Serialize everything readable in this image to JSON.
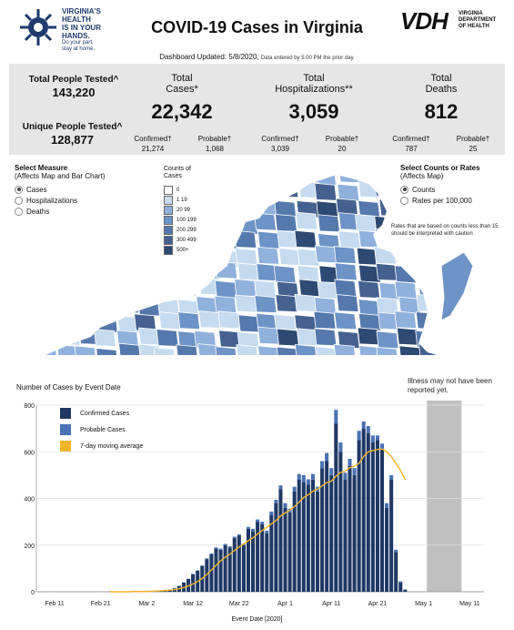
{
  "header": {
    "logo_lines": [
      "VIRGINIA'S",
      "HEALTH",
      "IS IN YOUR",
      "HANDS."
    ],
    "logo_sub": [
      "Do your part,",
      "stay at home."
    ],
    "title": "COVID-19 Cases in Virginia",
    "updated": "Dashboard Updated: 5/8/2020,",
    "updated_small": "Data entered by 5:00 PM the prior day.",
    "vdh_mark": "VDH",
    "vdh_sub": [
      "VIRGINIA",
      "DEPARTMENT",
      "OF HEALTH"
    ]
  },
  "stats": {
    "total_tested_label": "Total People Tested^",
    "total_tested": "143,220",
    "unique_tested_label": "Unique People Tested^",
    "unique_tested": "128,877",
    "cases": {
      "label1": "Total",
      "label2": "Cases*",
      "value": "22,342",
      "confirmed_label": "Confirmed†",
      "confirmed": "21,274",
      "probable_label": "Probable†",
      "probable": "1,068"
    },
    "hosp": {
      "label1": "Total",
      "label2": "Hospitalizations**",
      "value": "3,059",
      "confirmed_label": "Confirmed†",
      "confirmed": "3,039",
      "probable_label": "Probable†",
      "probable": "20"
    },
    "deaths": {
      "label1": "Total",
      "label2": "Deaths",
      "value": "812",
      "confirmed_label": "Confirmed†",
      "confirmed": "787",
      "probable_label": "Probable†",
      "probable": "25"
    }
  },
  "measure": {
    "title": "Select Measure",
    "subtitle": "(Affects Map and Bar Chart)",
    "options": [
      "Cases",
      "Hospitalizations",
      "Deaths"
    ],
    "selected": "Cases"
  },
  "legend": {
    "title1": "Counts of",
    "title2": "Cases",
    "bins": [
      {
        "label": "0",
        "color": "#ffffff"
      },
      {
        "label": "1 19",
        "color": "#c6dbef"
      },
      {
        "label": "20 99",
        "color": "#8fb1dc"
      },
      {
        "label": "100 199",
        "color": "#6d93c7"
      },
      {
        "label": "200 299",
        "color": "#5578ad"
      },
      {
        "label": "300 499",
        "color": "#44618f"
      },
      {
        "label": "500+",
        "color": "#2d4a73"
      }
    ]
  },
  "rates": {
    "title": "Select Counts or Rates",
    "subtitle": "(Affects Map)",
    "options": [
      "Counts",
      "Rates per 100,000"
    ],
    "selected": "Counts",
    "note": "Rates that are based on counts less than 15 should be interpreted with caution"
  },
  "chart": {
    "title": "Number of Cases by Event Date",
    "xlabel": "Event Date [2020]",
    "illness_note": "Illness may not have been reported yet.",
    "legend": [
      {
        "label": "Confirmed Cases",
        "color": "#1f3864"
      },
      {
        "label": "Probable Cases",
        "color": "#4a72b4"
      },
      {
        "label": "7-day moving average",
        "color": "#f0b429"
      }
    ]
  },
  "chart_data": {
    "type": "bar",
    "title": "Number of Cases by Event Date",
    "xlabel": "Event Date [2020]",
    "ylabel": "",
    "ylim": [
      0,
      800
    ],
    "yticks": [
      0,
      200,
      400,
      600,
      800
    ],
    "xtick_labels": [
      "Feb 11",
      "Feb 21",
      "Mar 2",
      "Mar 12",
      "Mar 22",
      "Apr 1",
      "Apr 11",
      "Apr 21",
      "May 1",
      "May 11"
    ],
    "start_date": "2020-02-23",
    "series": [
      {
        "name": "Confirmed Cases",
        "values": [
          1,
          0,
          0,
          1,
          0,
          1,
          2,
          2,
          3,
          4,
          5,
          6,
          8,
          10,
          15,
          25,
          40,
          55,
          75,
          90,
          110,
          140,
          160,
          185,
          180,
          200,
          190,
          230,
          240,
          200,
          270,
          260,
          300,
          290,
          250,
          330,
          380,
          440,
          360,
          340,
          430,
          480,
          470,
          460,
          480,
          430,
          530,
          560,
          500,
          720,
          600,
          480,
          540,
          500,
          650,
          700,
          680,
          640,
          650,
          610,
          360,
          480,
          170,
          40,
          8
        ],
        "probable": [
          0,
          0,
          0,
          0,
          0,
          0,
          0,
          0,
          0,
          0,
          0,
          0,
          0,
          0,
          0,
          0,
          1,
          1,
          2,
          2,
          3,
          3,
          4,
          5,
          5,
          5,
          5,
          6,
          6,
          6,
          8,
          10,
          10,
          10,
          12,
          14,
          14,
          16,
          20,
          16,
          20,
          25,
          30,
          22,
          25,
          20,
          30,
          35,
          30,
          60,
          40,
          30,
          30,
          30,
          40,
          30,
          30,
          30,
          20,
          25,
          20,
          20,
          10,
          5,
          2
        ]
      },
      {
        "name": "7-day moving average",
        "values": [
          0,
          0,
          0,
          0,
          0,
          1,
          1,
          1,
          1,
          2,
          3,
          4,
          5,
          7,
          9,
          13,
          18,
          25,
          33,
          44,
          57,
          74,
          93,
          113,
          132,
          148,
          161,
          177,
          192,
          204,
          219,
          231,
          247,
          262,
          277,
          291,
          305,
          325,
          338,
          350,
          365,
          384,
          404,
          416,
          431,
          440,
          454,
          468,
          474,
          495,
          512,
          516,
          532,
          538,
          550,
          580,
          600,
          605,
          610,
          612,
          600,
          580,
          550,
          520,
          480
        ]
      }
    ],
    "shaded_region_note": "Illness may not have been reported yet."
  }
}
